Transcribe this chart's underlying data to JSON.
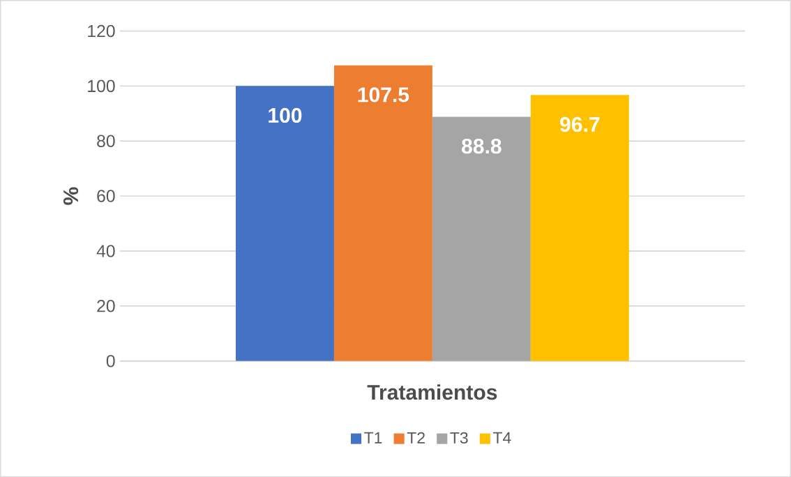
{
  "chart_data": {
    "type": "bar",
    "xlabel": "Tratamientos",
    "ylabel": "%",
    "categories": [
      null
    ],
    "series": [
      {
        "name": "T1",
        "color": "#4472c4",
        "values": [
          100
        ]
      },
      {
        "name": "T2",
        "color": "#ed7d31",
        "values": [
          107.5
        ]
      },
      {
        "name": "T3",
        "color": "#a5a5a5",
        "values": [
          88.8
        ]
      },
      {
        "name": "T4",
        "color": "#ffc000",
        "values": [
          96.7
        ]
      }
    ],
    "ylim": [
      0,
      120
    ],
    "yticks": [
      0,
      20,
      40,
      60,
      80,
      100,
      120
    ],
    "grid": "y",
    "legend": "bottom",
    "data_labels": true,
    "tick_labels": "y"
  }
}
